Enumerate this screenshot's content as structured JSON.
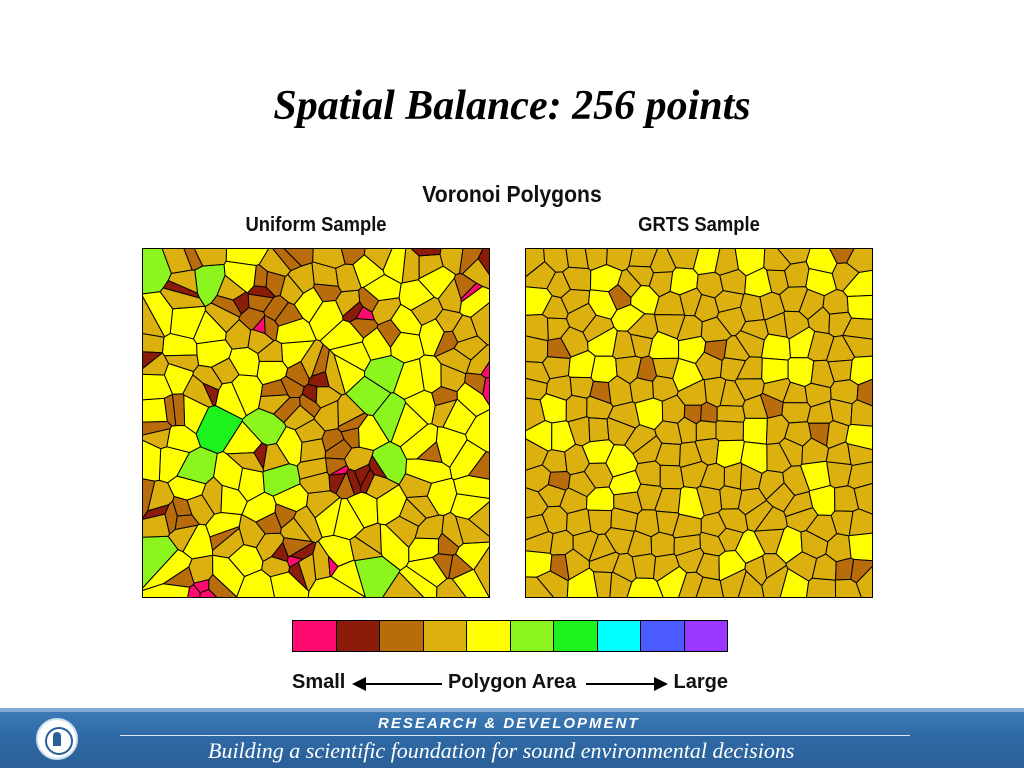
{
  "slide": {
    "title": "Spatial Balance: 256 points"
  },
  "figure": {
    "title": "Voronoi Polygons",
    "panels": [
      {
        "label": "Uniform Sample"
      },
      {
        "label": "GRTS Sample"
      }
    ]
  },
  "legend": {
    "small_label": "Small",
    "middle_label": "Polygon Area",
    "large_label": "Large",
    "colors": [
      "#ff0a6e",
      "#8b1c0a",
      "#b86c0c",
      "#dcb00e",
      "#ffff00",
      "#8cf51d",
      "#1ef21e",
      "#00ffff",
      "#4a5cff",
      "#9a36ff"
    ]
  },
  "footer": {
    "heading": "RESEARCH &  DEVELOPMENT",
    "tagline": "Building a scientific foundation for sound environmental decisions",
    "logo_icon": "agency-seal-icon"
  }
}
